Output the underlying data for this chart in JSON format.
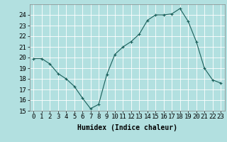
{
  "x": [
    0,
    1,
    2,
    3,
    4,
    5,
    6,
    7,
    8,
    9,
    10,
    11,
    12,
    13,
    14,
    15,
    16,
    17,
    18,
    19,
    20,
    21,
    22,
    23
  ],
  "y": [
    19.9,
    19.9,
    19.4,
    18.5,
    18.0,
    17.3,
    16.2,
    15.2,
    15.6,
    18.4,
    20.3,
    21.0,
    21.5,
    22.2,
    23.5,
    24.0,
    24.0,
    24.1,
    24.6,
    23.4,
    21.5,
    19.0,
    17.9,
    17.6
  ],
  "xlabel": "Humidex (Indice chaleur)",
  "ylim": [
    15,
    25
  ],
  "xlim": [
    -0.5,
    23.5
  ],
  "yticks": [
    15,
    16,
    17,
    18,
    19,
    20,
    21,
    22,
    23,
    24
  ],
  "xticks": [
    0,
    1,
    2,
    3,
    4,
    5,
    6,
    7,
    8,
    9,
    10,
    11,
    12,
    13,
    14,
    15,
    16,
    17,
    18,
    19,
    20,
    21,
    22,
    23
  ],
  "line_color": "#1a5f5a",
  "marker": "+",
  "bg_color": "#b2e0e0",
  "grid_color": "#ffffff",
  "xlabel_fontsize": 7,
  "tick_fontsize": 6.5
}
